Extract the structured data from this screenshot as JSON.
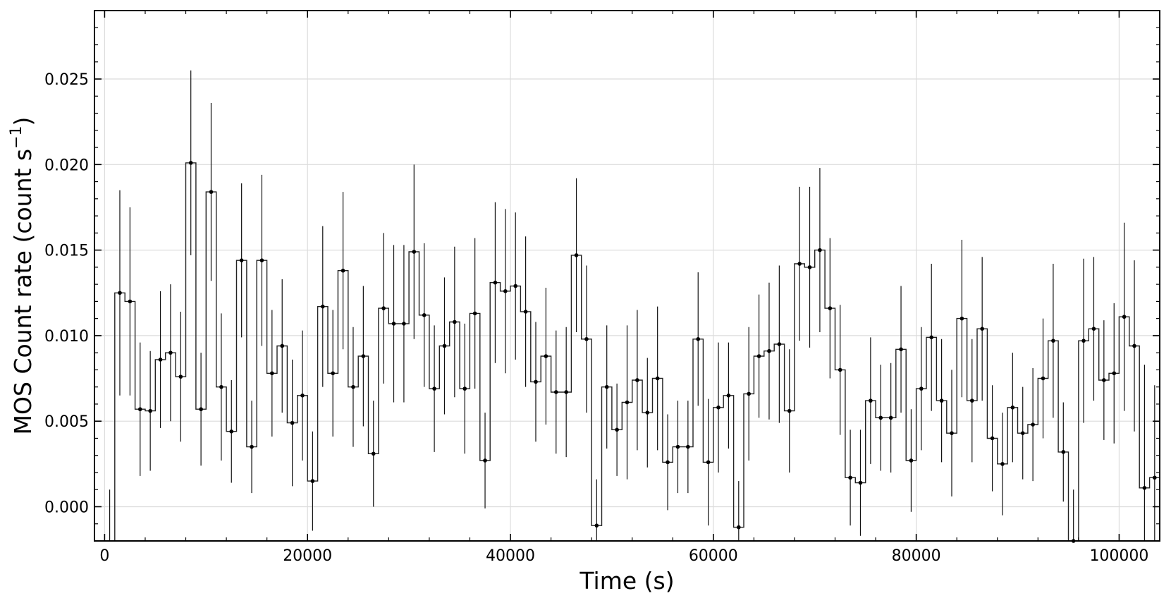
{
  "chart_data": {
    "type": "line",
    "title": "",
    "xlabel": "Time (s)",
    "ylabel": "MOS Count rate (count s",
    "ylabel_sup": "−1",
    "ylabel_close": ")",
    "xlim": [
      -1000,
      104000
    ],
    "ylim": [
      -0.002,
      0.029
    ],
    "grid": true,
    "x_ticks": [
      0,
      20000,
      40000,
      60000,
      80000,
      100000
    ],
    "y_ticks": [
      0.0,
      0.005,
      0.01,
      0.015,
      0.02,
      0.025
    ],
    "x_tick_labels": [
      "0",
      "20000",
      "40000",
      "60000",
      "80000",
      "100000"
    ],
    "y_tick_labels": [
      "0.000",
      "0.005",
      "0.010",
      "0.015",
      "0.020",
      "0.025"
    ],
    "bin_width": 1000,
    "x": [
      0,
      1000,
      2000,
      3000,
      4000,
      5000,
      6000,
      7000,
      8000,
      9000,
      10000,
      11000,
      12000,
      13000,
      14000,
      15000,
      16000,
      17000,
      18000,
      19000,
      20000,
      21000,
      22000,
      23000,
      24000,
      25000,
      26000,
      27000,
      28000,
      29000,
      30000,
      31000,
      32000,
      33000,
      34000,
      35000,
      36000,
      37000,
      38000,
      39000,
      40000,
      41000,
      42000,
      43000,
      44000,
      45000,
      46000,
      47000,
      48000,
      49000,
      50000,
      51000,
      52000,
      53000,
      54000,
      55000,
      56000,
      57000,
      58000,
      59000,
      60000,
      61000,
      62000,
      63000,
      64000,
      65000,
      66000,
      67000,
      68000,
      69000,
      70000,
      71000,
      72000,
      73000,
      74000,
      75000,
      76000,
      77000,
      78000,
      79000,
      80000,
      81000,
      82000,
      83000,
      84000,
      85000,
      86000,
      87000,
      88000,
      89000,
      90000,
      91000,
      92000,
      93000,
      94000,
      95000,
      96000,
      97000,
      98000,
      99000,
      100000,
      101000,
      102000,
      103000
    ],
    "y": [
      -0.005,
      0.0125,
      0.012,
      0.0057,
      0.0056,
      0.0086,
      0.009,
      0.0076,
      0.0201,
      0.0057,
      0.0184,
      0.007,
      0.0044,
      0.0144,
      0.0035,
      0.0144,
      0.0078,
      0.0094,
      0.0049,
      0.0065,
      0.0015,
      0.0117,
      0.0078,
      0.0138,
      0.007,
      0.0088,
      0.0031,
      0.0116,
      0.0107,
      0.0107,
      0.0149,
      0.0112,
      0.0069,
      0.0094,
      0.0108,
      0.0069,
      0.0113,
      0.0027,
      0.0131,
      0.0126,
      0.0129,
      0.0114,
      0.0073,
      0.0088,
      0.0067,
      0.0067,
      0.0147,
      0.0098,
      -0.0011,
      0.007,
      0.0045,
      0.0061,
      0.0074,
      0.0055,
      0.0075,
      0.0026,
      0.0035,
      0.0035,
      0.0098,
      0.0026,
      0.0058,
      0.0065,
      -0.0012,
      0.0066,
      0.0088,
      0.0091,
      0.0095,
      0.0056,
      0.0142,
      0.014,
      0.015,
      0.0116,
      0.008,
      0.0017,
      0.0014,
      0.0062,
      0.0052,
      0.0052,
      0.0092,
      0.0027,
      0.0069,
      0.0099,
      0.0062,
      0.0043,
      0.011,
      0.0062,
      0.0104,
      0.004,
      0.0025,
      0.0058,
      0.0043,
      0.0048,
      0.0075,
      0.0097,
      0.0032,
      -0.002,
      0.0097,
      0.0104,
      0.0074,
      0.0078,
      0.0111,
      0.0094,
      0.0011,
      0.0017
    ],
    "yerr": [
      0.006,
      0.006,
      0.0055,
      0.0039,
      0.0035,
      0.004,
      0.004,
      0.0038,
      0.0054,
      0.0033,
      0.0052,
      0.0043,
      0.003,
      0.0045,
      0.0027,
      0.005,
      0.0037,
      0.0039,
      0.0037,
      0.0038,
      0.0029,
      0.0047,
      0.0037,
      0.0046,
      0.0035,
      0.0041,
      0.0031,
      0.0044,
      0.0046,
      0.0046,
      0.0051,
      0.0042,
      0.0037,
      0.004,
      0.0044,
      0.0038,
      0.0044,
      0.0028,
      0.0047,
      0.0048,
      0.0043,
      0.0044,
      0.0035,
      0.004,
      0.0036,
      0.0038,
      0.0045,
      0.0043,
      0.0027,
      0.0036,
      0.0027,
      0.0045,
      0.0041,
      0.0032,
      0.0042,
      0.0028,
      0.0027,
      0.0027,
      0.0039,
      0.0037,
      0.0038,
      0.0031,
      0.0027,
      0.0039,
      0.0036,
      0.004,
      0.0046,
      0.0036,
      0.0045,
      0.0047,
      0.0048,
      0.0041,
      0.0038,
      0.0028,
      0.0031,
      0.0037,
      0.0031,
      0.0032,
      0.0037,
      0.003,
      0.0036,
      0.0043,
      0.0036,
      0.0037,
      0.0046,
      0.0036,
      0.0042,
      0.0031,
      0.003,
      0.0032,
      0.0027,
      0.0033,
      0.0035,
      0.0045,
      0.0029,
      0.003,
      0.0048,
      0.0042,
      0.0035,
      0.0041,
      0.0055,
      0.005,
      0.0072,
      0.0054
    ]
  }
}
